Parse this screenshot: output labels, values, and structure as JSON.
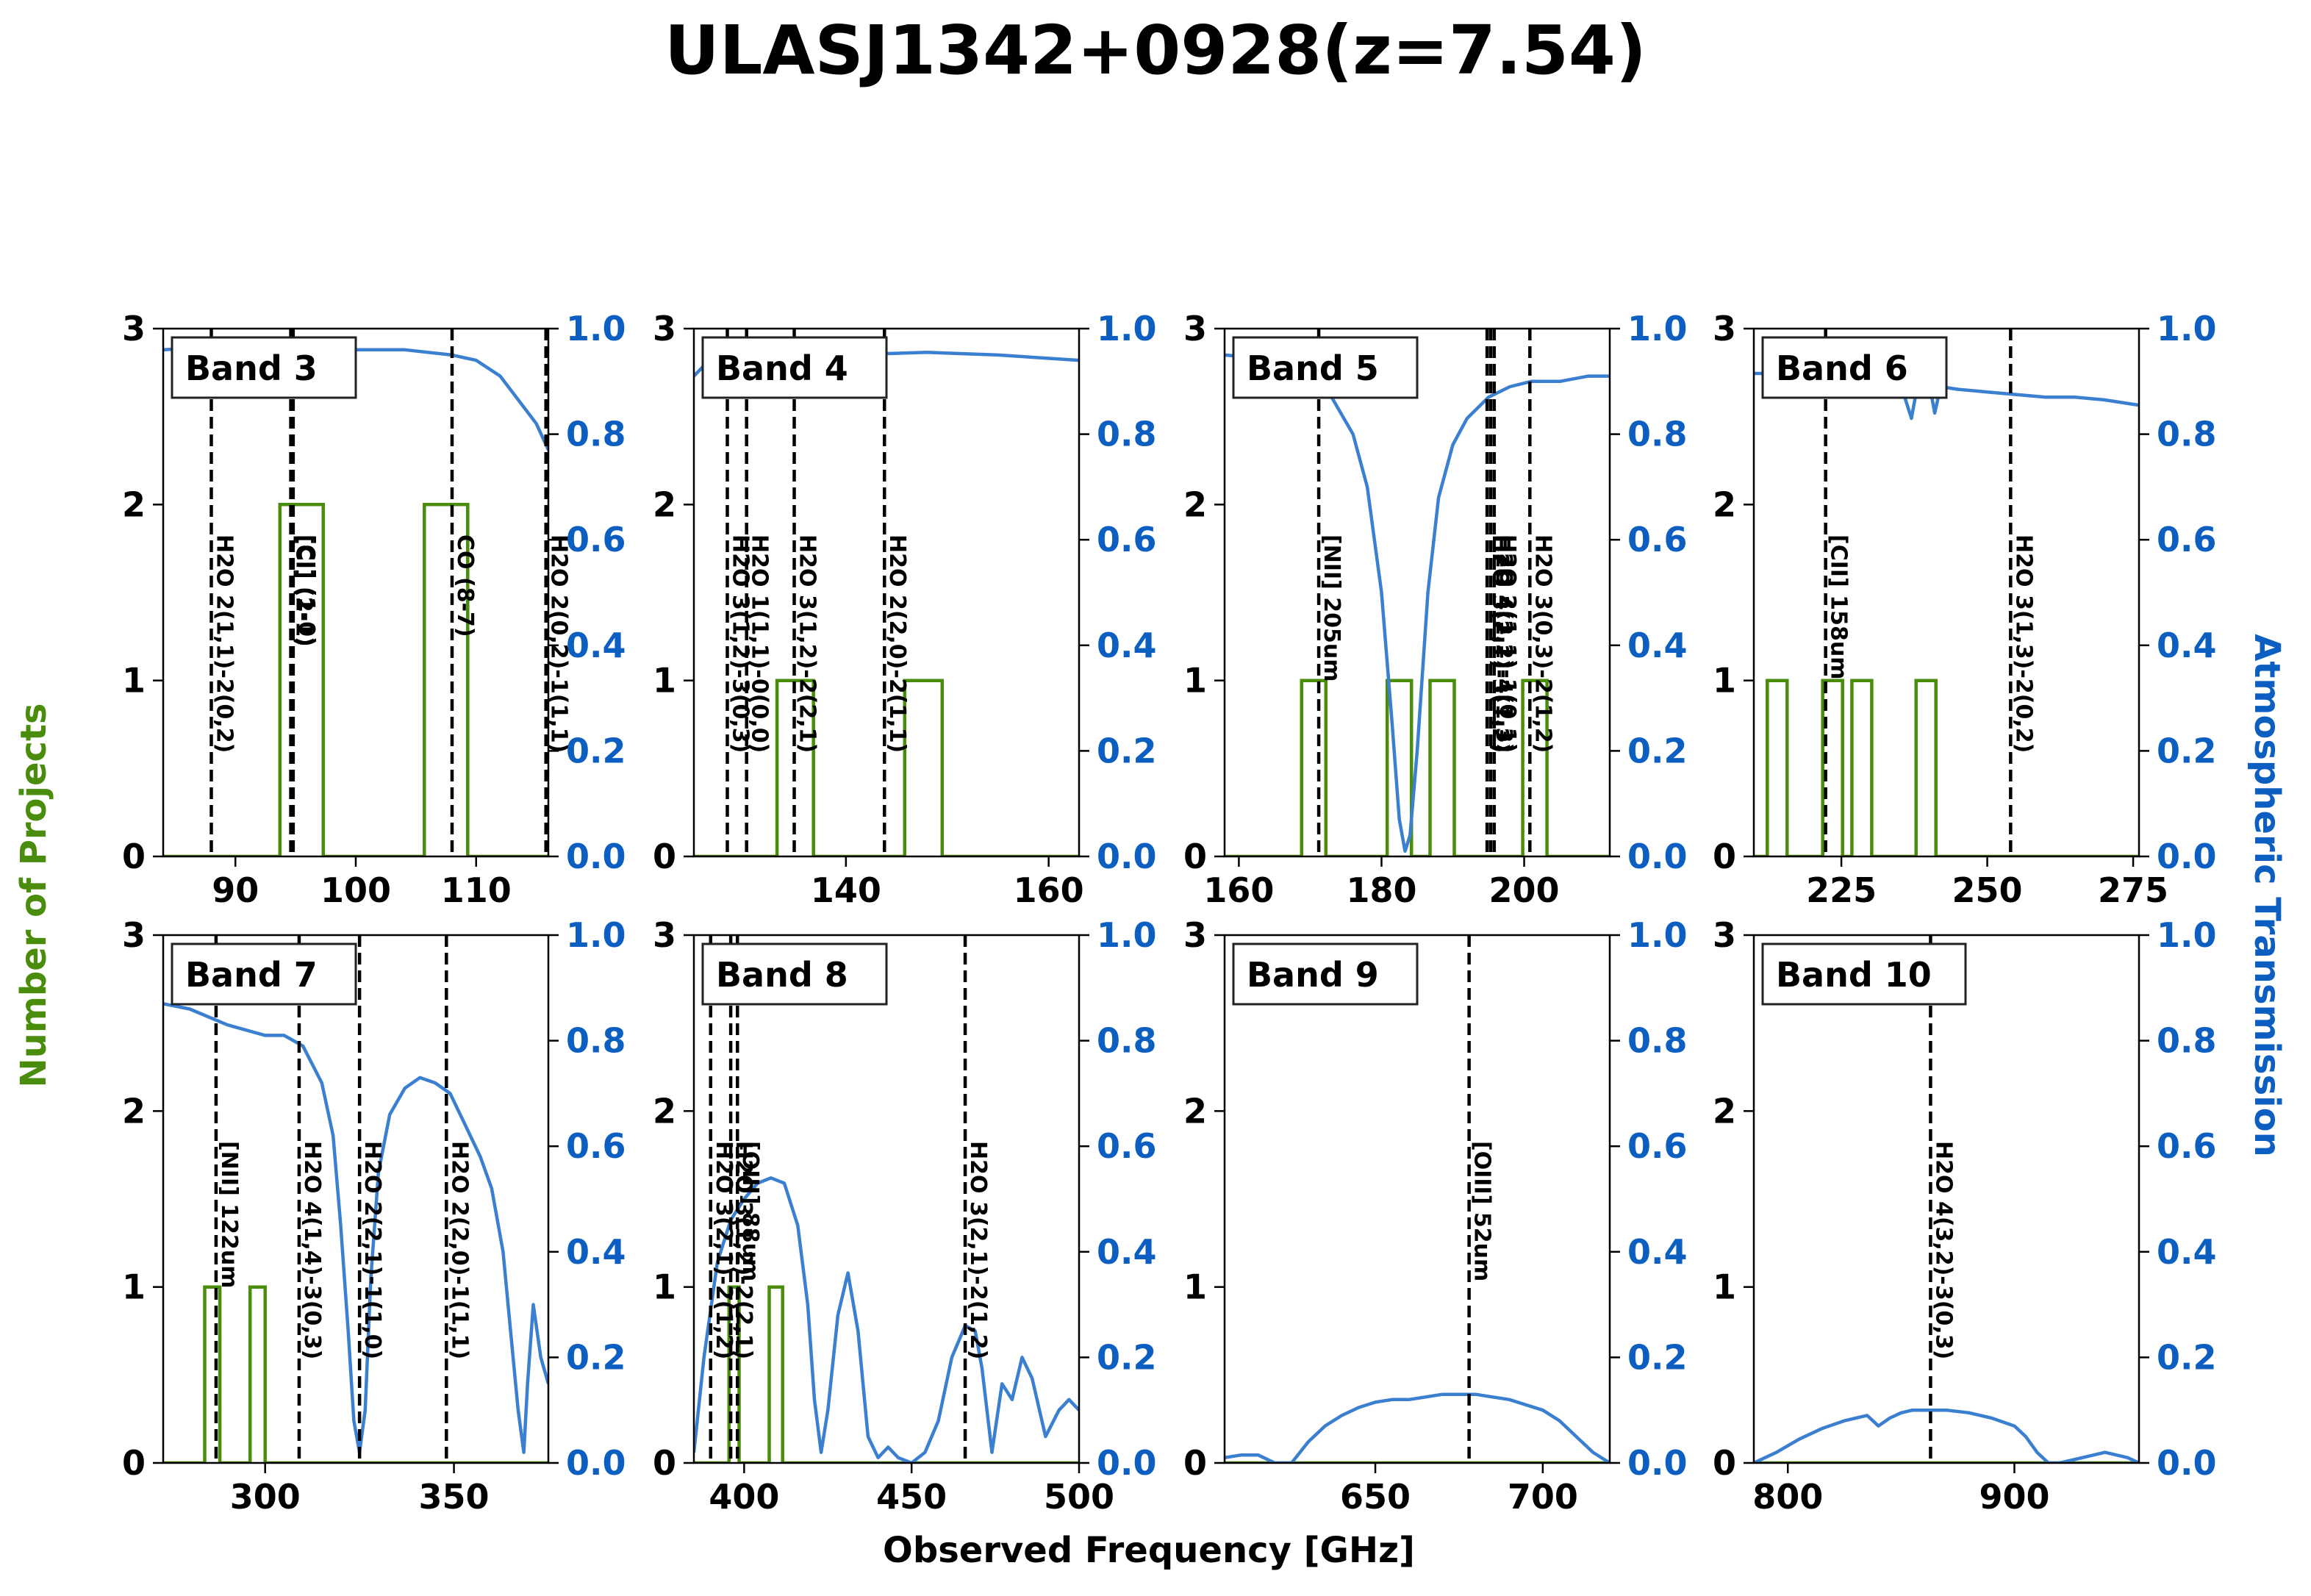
{
  "figure": {
    "title": "ULASJ1342+0928(z=7.54)",
    "xlabel": "Observed Frequency [GHz]",
    "ylabel_left": "Number of Projects",
    "ylabel_right": "Atmospheric Transmission",
    "colors": {
      "projects": "#4a8c0c",
      "transmission": "#3a7fd0",
      "right_axis_text": "#0c5fc0",
      "lines": "#000000"
    }
  },
  "chart_data": [
    {
      "type": "line",
      "panel": "Band 3",
      "label": "Band 3",
      "xlim": [
        84,
        116
      ],
      "ylim_left": [
        0,
        3
      ],
      "ylim_right": [
        0,
        1
      ],
      "xticks": [
        90,
        100,
        110
      ],
      "yticks_left": [
        0,
        1,
        2,
        3
      ],
      "yticks_right": [
        0.0,
        0.2,
        0.4,
        0.6,
        0.8,
        1.0
      ],
      "projects": {
        "x": [
          84,
          93.7,
          93.7,
          97.3,
          97.3,
          105.7,
          105.7,
          109.3,
          109.3,
          116
        ],
        "y": [
          0,
          0,
          2,
          2,
          0,
          0,
          2,
          2,
          0,
          0
        ]
      },
      "transmission": {
        "x": [
          84,
          88,
          92,
          96,
          100,
          104,
          108,
          110,
          112,
          113,
          114,
          115,
          116
        ],
        "y": [
          0.96,
          0.965,
          0.965,
          0.965,
          0.96,
          0.96,
          0.95,
          0.94,
          0.91,
          0.88,
          0.85,
          0.82,
          0.77
        ]
      },
      "lines": [
        {
          "x": 88.0,
          "label": "H2O 2(1,1)-2(0,2)"
        },
        {
          "x": 94.6,
          "label": "[CI] (2-1)"
        },
        {
          "x": 94.8,
          "label": "[CI] (1-0)"
        },
        {
          "x": 108.0,
          "label": "CO (8-7)"
        },
        {
          "x": 115.8,
          "label": "H2O 2(0,2)-1(1,1)"
        }
      ]
    },
    {
      "type": "line",
      "panel": "Band 4",
      "label": "Band 4",
      "xlim": [
        125,
        163
      ],
      "ylim_left": [
        0,
        3
      ],
      "ylim_right": [
        0,
        1
      ],
      "xticks": [
        140,
        160
      ],
      "yticks_left": [
        0,
        1,
        2,
        3
      ],
      "yticks_right": [
        0.0,
        0.2,
        0.4,
        0.6,
        0.8,
        1.0
      ],
      "projects": {
        "x": [
          125,
          133.2,
          133.2,
          136.8,
          136.8,
          145.8,
          145.8,
          149.5,
          149.5,
          163
        ],
        "y": [
          0,
          0,
          1,
          1,
          0,
          0,
          1,
          1,
          0,
          0
        ]
      },
      "transmission": {
        "x": [
          125,
          126,
          128,
          132,
          140,
          148,
          155,
          163
        ],
        "y": [
          0.91,
          0.93,
          0.945,
          0.95,
          0.95,
          0.955,
          0.95,
          0.94
        ]
      },
      "lines": [
        {
          "x": 128.3,
          "label": "H2O 3(1,2)-3(0,3)"
        },
        {
          "x": 130.2,
          "label": "H2O 1(1,1)-0(0,0)"
        },
        {
          "x": 134.9,
          "label": "H2O 3(1,2)-2(2,1)"
        },
        {
          "x": 143.8,
          "label": "H2O 2(2,0)-2(1,1)"
        }
      ]
    },
    {
      "type": "line",
      "panel": "Band 5",
      "label": "Band 5",
      "xlim": [
        158,
        212
      ],
      "ylim_left": [
        0,
        3
      ],
      "ylim_right": [
        0,
        1
      ],
      "xticks": [
        160,
        180,
        200
      ],
      "yticks_left": [
        0,
        1,
        2,
        3
      ],
      "yticks_right": [
        0.0,
        0.2,
        0.4,
        0.6,
        0.8,
        1.0
      ],
      "projects": {
        "x": [
          158,
          168.8,
          168.8,
          172.2,
          172.2,
          180.8,
          180.8,
          184.2,
          184.2,
          186.8,
          186.8,
          190.2,
          190.2,
          199.8,
          199.8,
          203.2,
          203.2,
          212
        ],
        "y": [
          0,
          0,
          1,
          1,
          0,
          0,
          1,
          1,
          0,
          0,
          1,
          1,
          0,
          0,
          1,
          1,
          0,
          0
        ]
      },
      "transmission": {
        "x": [
          158,
          162,
          166,
          170,
          173,
          176,
          178,
          180,
          181.5,
          182.5,
          183.3,
          184,
          185,
          186.5,
          188,
          190,
          192,
          195,
          198,
          201,
          205,
          209,
          212
        ],
        "y": [
          0.95,
          0.945,
          0.935,
          0.91,
          0.87,
          0.8,
          0.7,
          0.5,
          0.25,
          0.07,
          0.01,
          0.04,
          0.2,
          0.5,
          0.68,
          0.78,
          0.83,
          0.87,
          0.89,
          0.9,
          0.9,
          0.91,
          0.91
        ]
      },
      "lines": [
        {
          "x": 171.2,
          "label": "[NII] 205um"
        },
        {
          "x": 194.8,
          "label": "H2O 3(2,1)-3(1,2)"
        },
        {
          "x": 195.3,
          "label": "H2O 4(2,2)-4(1,3)"
        },
        {
          "x": 195.8,
          "label": "H2O 2(1,1)-1(0,1)"
        },
        {
          "x": 200.8,
          "label": "H2O 3(0,3)-2(1,2)"
        }
      ]
    },
    {
      "type": "line",
      "panel": "Band 6",
      "label": "Band 6",
      "xlim": [
        210,
        276
      ],
      "ylim_left": [
        0,
        3
      ],
      "ylim_right": [
        0,
        1
      ],
      "xticks": [
        225,
        250,
        275
      ],
      "yticks_left": [
        0,
        1,
        2,
        3
      ],
      "yticks_right": [
        0.0,
        0.2,
        0.4,
        0.6,
        0.8,
        1.0
      ],
      "projects": {
        "x": [
          210,
          212.3,
          212.3,
          215.7,
          215.7,
          221.8,
          221.8,
          225.2,
          225.2,
          226.8,
          226.8,
          230.2,
          230.2,
          237.8,
          237.8,
          241.2,
          241.2,
          276
        ],
        "y": [
          0,
          0,
          1,
          1,
          0,
          0,
          1,
          1,
          0,
          0,
          1,
          1,
          0,
          0,
          1,
          1,
          0,
          0
        ]
      },
      "transmission": {
        "x": [
          210,
          220,
          230,
          235,
          237,
          238,
          240,
          241,
          242,
          245,
          250,
          255,
          260,
          265,
          270,
          276
        ],
        "y": [
          0.915,
          0.915,
          0.905,
          0.9,
          0.83,
          0.89,
          0.9,
          0.84,
          0.89,
          0.885,
          0.88,
          0.875,
          0.87,
          0.87,
          0.865,
          0.855
        ]
      },
      "lines": [
        {
          "x": 222.3,
          "label": "[CII] 158um"
        },
        {
          "x": 254.0,
          "label": "H2O 3(1,3)-2(0,2)"
        }
      ]
    },
    {
      "type": "line",
      "panel": "Band 7",
      "label": "Band 7",
      "xlim": [
        273,
        375
      ],
      "ylim_left": [
        0,
        3
      ],
      "ylim_right": [
        0,
        1
      ],
      "xticks": [
        300,
        350
      ],
      "yticks_left": [
        0,
        1,
        2,
        3
      ],
      "yticks_right": [
        0.0,
        0.2,
        0.4,
        0.6,
        0.8,
        1.0
      ],
      "projects": {
        "x": [
          273,
          284,
          284,
          288,
          288,
          296,
          296,
          300,
          300,
          375
        ],
        "y": [
          0,
          0,
          1,
          1,
          0,
          0,
          1,
          1,
          0,
          0
        ]
      },
      "transmission": {
        "x": [
          273,
          280,
          290,
          300,
          305,
          310,
          315,
          318,
          320,
          322,
          323.5,
          325,
          326.5,
          328,
          330,
          333,
          337,
          341,
          345,
          349,
          353,
          357,
          360,
          363,
          365,
          367,
          368.5,
          369.5,
          371,
          373,
          375
        ],
        "y": [
          0.87,
          0.86,
          0.83,
          0.81,
          0.81,
          0.79,
          0.72,
          0.62,
          0.45,
          0.25,
          0.08,
          0.02,
          0.1,
          0.35,
          0.55,
          0.66,
          0.71,
          0.73,
          0.72,
          0.7,
          0.64,
          0.58,
          0.52,
          0.4,
          0.25,
          0.1,
          0.02,
          0.15,
          0.3,
          0.2,
          0.15
        ]
      },
      "lines": [
        {
          "x": 287.0,
          "label": "[NII] 122um"
        },
        {
          "x": 309.0,
          "label": "H2O 4(1,4)-3(0,3)"
        },
        {
          "x": 325.0,
          "label": "H2O 2(2,1)-1(1,0)"
        },
        {
          "x": 348.0,
          "label": "H2O 2(2,0)-1(1,1)"
        }
      ]
    },
    {
      "type": "line",
      "panel": "Band 8",
      "label": "Band 8",
      "xlim": [
        385,
        500
      ],
      "ylim_left": [
        0,
        3
      ],
      "ylim_right": [
        0,
        1
      ],
      "xticks": [
        400,
        450,
        500
      ],
      "yticks_left": [
        0,
        1,
        2,
        3
      ],
      "yticks_right": [
        0.0,
        0.2,
        0.4,
        0.6,
        0.8,
        1.0
      ],
      "projects": {
        "x": [
          385,
          395.5,
          395.5,
          398.5,
          398.5,
          407.5,
          407.5,
          411.5,
          411.5,
          500
        ],
        "y": [
          0,
          0,
          1,
          1,
          0,
          0,
          1,
          1,
          0,
          0
        ]
      },
      "transmission": {
        "x": [
          385,
          388,
          392,
          396,
          400,
          404,
          408,
          412,
          416,
          419,
          421,
          423,
          425,
          428,
          431,
          434,
          437,
          440,
          443,
          446,
          450,
          454,
          458,
          462,
          466,
          469,
          471,
          474,
          477,
          480,
          483,
          486,
          490,
          494,
          497,
          500
        ],
        "y": [
          0.02,
          0.2,
          0.38,
          0.46,
          0.5,
          0.53,
          0.54,
          0.53,
          0.45,
          0.3,
          0.12,
          0.02,
          0.1,
          0.28,
          0.36,
          0.25,
          0.05,
          0.01,
          0.03,
          0.01,
          0.0,
          0.02,
          0.08,
          0.2,
          0.26,
          0.25,
          0.18,
          0.02,
          0.15,
          0.12,
          0.2,
          0.16,
          0.05,
          0.1,
          0.12,
          0.1
        ]
      },
      "lines": [
        {
          "x": 390.0,
          "label": "H2O 3(2,1)-2(1,2)"
        },
        {
          "x": 396.0,
          "label": "H2O 3(1,2)-2(2,1)"
        },
        {
          "x": 398.0,
          "label": "[OIII] 88um"
        },
        {
          "x": 466.0,
          "label": "H2O 3(2,1)-2(1,2)"
        }
      ]
    },
    {
      "type": "line",
      "panel": "Band 9",
      "label": "Band 9",
      "xlim": [
        605,
        720
      ],
      "ylim_left": [
        0,
        3
      ],
      "ylim_right": [
        0,
        1
      ],
      "xticks": [
        650,
        700
      ],
      "yticks_left": [
        0,
        1,
        2,
        3
      ],
      "yticks_right": [
        0.0,
        0.2,
        0.4,
        0.6,
        0.8,
        1.0
      ],
      "projects": {
        "x": [
          605,
          720
        ],
        "y": [
          0,
          0
        ]
      },
      "transmission": {
        "x": [
          605,
          610,
          615,
          620,
          625,
          630,
          635,
          640,
          645,
          650,
          655,
          660,
          665,
          670,
          675,
          680,
          685,
          690,
          695,
          700,
          705,
          710,
          715,
          720
        ],
        "y": [
          0.01,
          0.015,
          0.015,
          0.0,
          0.0,
          0.04,
          0.07,
          0.09,
          0.105,
          0.115,
          0.12,
          0.12,
          0.125,
          0.13,
          0.13,
          0.13,
          0.125,
          0.12,
          0.11,
          0.1,
          0.08,
          0.05,
          0.02,
          0.0
        ]
      },
      "lines": [
        {
          "x": 678.0,
          "label": "[OIII] 52um"
        }
      ]
    },
    {
      "type": "line",
      "panel": "Band 10",
      "label": "Band 10",
      "xlim": [
        785,
        955
      ],
      "ylim_left": [
        0,
        3
      ],
      "ylim_right": [
        0,
        1
      ],
      "xticks": [
        800,
        900
      ],
      "yticks_left": [
        0,
        1,
        2,
        3
      ],
      "yticks_right": [
        0.0,
        0.2,
        0.4,
        0.6,
        0.8,
        1.0
      ],
      "projects": {
        "x": [
          785,
          955
        ],
        "y": [
          0,
          0
        ]
      },
      "transmission": {
        "x": [
          785,
          795,
          805,
          815,
          825,
          835,
          840,
          845,
          850,
          855,
          860,
          870,
          880,
          890,
          900,
          905,
          910,
          915,
          920,
          930,
          940,
          950,
          955
        ],
        "y": [
          0.0,
          0.02,
          0.045,
          0.065,
          0.08,
          0.09,
          0.07,
          0.085,
          0.095,
          0.1,
          0.1,
          0.1,
          0.095,
          0.085,
          0.07,
          0.05,
          0.02,
          0.0,
          0.0,
          0.01,
          0.02,
          0.01,
          0.0
        ]
      },
      "lines": [
        {
          "x": 863.0,
          "label": "H2O 4(3,2)-3(0,3)"
        }
      ]
    }
  ]
}
